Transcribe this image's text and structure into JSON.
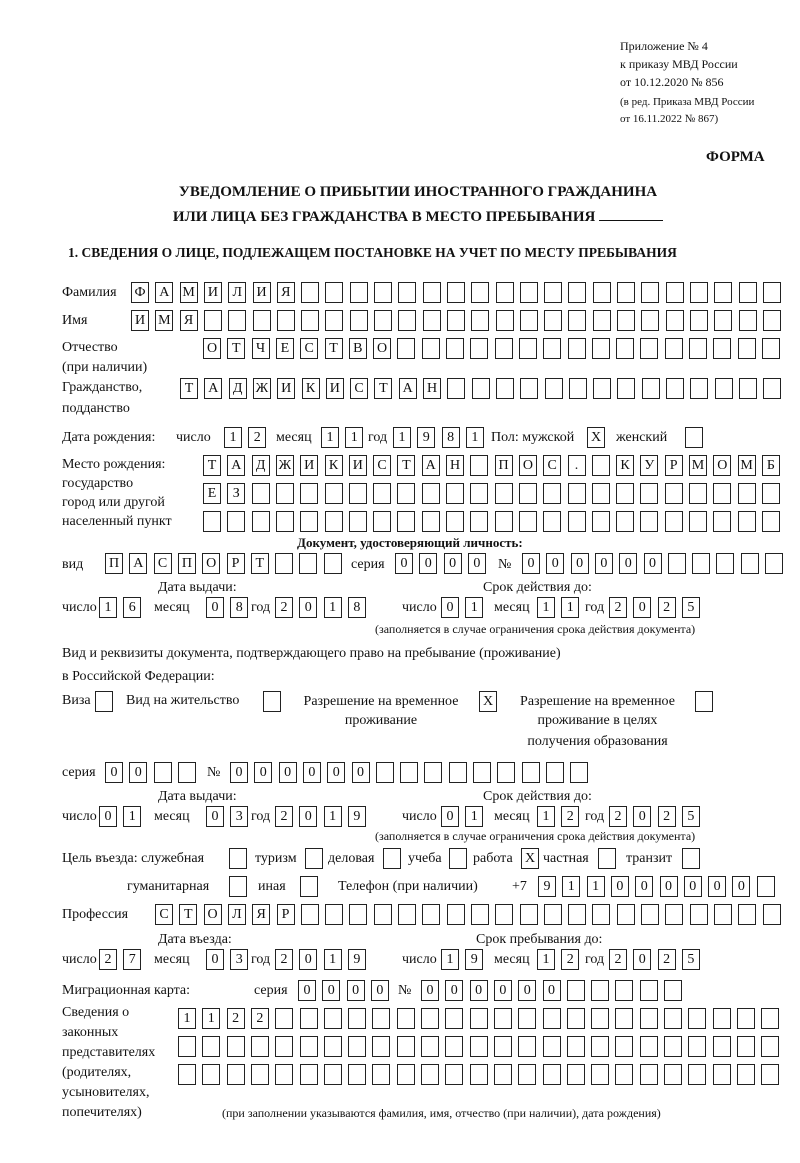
{
  "header": {
    "l1": "Приложение № 4",
    "l2": "к приказу МВД России",
    "l3": "от 10.12.2020 № 856",
    "l4": "(в ред. Приказа МВД России",
    "l5": "от 16.11.2022 № 867)",
    "forma": "ФОРМА",
    "title1": "УВЕДОМЛЕНИЕ О ПРИБЫТИИ ИНОСТРАННОГО ГРАЖДАНИНА",
    "title2": "ИЛИ ЛИЦА БЕЗ ГРАЖДАНСТВА В МЕСТО ПРЕБЫВАНИЯ",
    "section1": "1. СВЕДЕНИЯ О ЛИЦЕ, ПОДЛЕЖАЩЕМ ПОСТАНОВКЕ НА УЧЕТ ПО МЕСТУ ПРЕБЫВАНИЯ"
  },
  "labels": {
    "surname": "Фамилия",
    "name": "Имя",
    "patronymic": "Отчество",
    "patronymic2": "(при наличии)",
    "citizenship": "Гражданство,",
    "citizenship2": "подданство",
    "birth_date": "Дата рождения:",
    "day": "число",
    "month": "месяц",
    "year": "год",
    "sex": "Пол: мужской",
    "female": "женский",
    "birthplace1": "Место рождения:",
    "birthplace2": "государство",
    "birthplace3": "город или другой",
    "birthplace4": "населенный пункт",
    "id_doc": "Документ, удостоверяющий личность:",
    "kind": "вид",
    "series": "серия",
    "number": "№",
    "issue_date": "Дата выдачи:",
    "valid_until": "Срок действия до:",
    "valid_note": "(заполняется в случае ограничения срока действия документа)",
    "right_doc1": "Вид и реквизиты документа, подтверждающего право на пребывание (проживание)",
    "right_doc2": "в Российской Федерации:",
    "visa": "Виза",
    "residence": "Вид на жительство",
    "trp1": "Разрешение на временное",
    "trp2": "проживание",
    "trpe1": "Разрешение на временное",
    "trpe2": "проживание в целях",
    "trpe3": "получения образования",
    "purpose": "Цель въезда: служебная",
    "tourism": "туризм",
    "business": "деловая",
    "study": "учеба",
    "work": "работа",
    "private": "частная",
    "transit": "транзит",
    "humanitarian": "гуманитарная",
    "other": "иная",
    "phone": "Телефон (при наличии)",
    "phone_prefix": "+7",
    "profession": "Профессия",
    "entry_date": "Дата въезда:",
    "stay_until": "Срок пребывания до:",
    "migration_card": "Миграционная карта:",
    "rep1": "Сведения о",
    "rep2": "законных",
    "rep3": "представителях",
    "rep4": "(родителях,",
    "rep5": "усыновителях,",
    "rep6": "попечителях)",
    "rep_note": "(при заполнении указываются фамилия, имя, отчество (при наличии), дата рождения)"
  },
  "values": {
    "surname": "ФАМИЛИЯ",
    "name": "ИМЯ",
    "patronymic": "ОТЧЕСТВО",
    "citizenship": "ТАДЖИКИСТАН",
    "birth_day": "12",
    "birth_month": "11",
    "birth_year": "1981",
    "male": "X",
    "female": "",
    "birthplace1": "ТАДЖИКИСТАН ПОС. КУРМОМБ",
    "birthplace2": "ЕЗ",
    "birthplace3": "",
    "doc_kind": "ПАСПОРТ",
    "doc_series": "0000",
    "doc_number": "000000",
    "doc_issue_day": "16",
    "doc_issue_month": "08",
    "doc_issue_year": "2018",
    "doc_valid_day": "01",
    "doc_valid_month": "11",
    "doc_valid_year": "2025",
    "visa": "",
    "residence": "",
    "trp": "X",
    "trpe": "",
    "right_series": "00",
    "right_number": "000000",
    "right_issue_day": "01",
    "right_issue_month": "03",
    "right_issue_year": "2019",
    "right_valid_day": "01",
    "right_valid_month": "12",
    "right_valid_year": "2025",
    "p_official": "",
    "p_tourism": "",
    "p_business": "",
    "p_study": "",
    "p_work": "X",
    "p_private": "",
    "p_transit": "",
    "p_humanitarian": "",
    "p_other": "",
    "phone": "911000000",
    "profession": "СТОЛЯР",
    "entry_day": "27",
    "entry_month": "03",
    "entry_year": "2019",
    "stay_day": "19",
    "stay_month": "12",
    "stay_year": "2025",
    "mc_series": "0000",
    "mc_number": "000000",
    "rep1": "1122",
    "rep2": "",
    "rep3": ""
  }
}
